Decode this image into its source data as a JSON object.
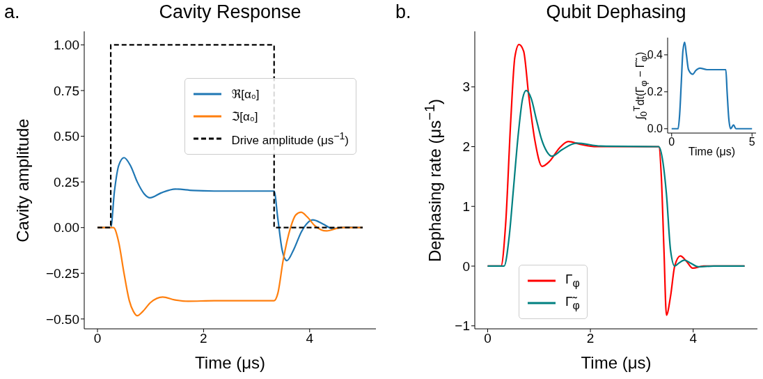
{
  "chart_data": [
    {
      "type": "line",
      "title": "Cavity Response",
      "xlabel": "Time (μs)",
      "ylabel": "Cavity amplitude",
      "annotations": [
        "a."
      ],
      "xlim": [
        -0.25,
        5.25
      ],
      "ylim": [
        -0.554,
        1.074
      ],
      "xticks": [
        0,
        2,
        4
      ],
      "yticks": [
        {
          "value": -0.5,
          "label": "−0.50"
        },
        {
          "value": -0.25,
          "label": "−0.25"
        },
        {
          "value": 0,
          "label": "0.00"
        },
        {
          "value": 0.25,
          "label": "0.25"
        },
        {
          "value": 0.5,
          "label": "0.50"
        },
        {
          "value": 0.75,
          "label": "0.75"
        },
        {
          "value": 1,
          "label": "1.00"
        }
      ],
      "legend": "top right",
      "series": [
        {
          "name": "ℜ[α₀]",
          "color": "#1f77b4",
          "x": [
            0,
            0.25,
            0.32,
            0.4,
            0.5,
            0.62,
            0.75,
            0.88,
            0.99,
            1.2,
            1.47,
            1.8,
            2.2,
            3.33,
            3.4,
            3.48,
            3.57,
            3.7,
            3.85,
            4.06,
            4.25,
            4.43,
            4.7,
            5
          ],
          "values": [
            0,
            0,
            0.2,
            0.34,
            0.383,
            0.34,
            0.25,
            0.185,
            0.163,
            0.19,
            0.211,
            0.203,
            0.2,
            0.2,
            0.05,
            -0.12,
            -0.181,
            -0.12,
            -0.02,
            0.042,
            0.02,
            -0.005,
            0.002,
            0
          ]
        },
        {
          "name": "ℑ[α₀]",
          "color": "#ff7f0e",
          "x": [
            0,
            0.3,
            0.4,
            0.5,
            0.6,
            0.68,
            0.75,
            0.85,
            1.0,
            1.23,
            1.45,
            1.71,
            2.2,
            3.33,
            3.4,
            3.5,
            3.64,
            3.74,
            3.84,
            3.95,
            4.1,
            4.32,
            4.6,
            5
          ],
          "values": [
            0,
            0,
            -0.08,
            -0.25,
            -0.4,
            -0.46,
            -0.482,
            -0.46,
            -0.41,
            -0.38,
            -0.395,
            -0.403,
            -0.4,
            -0.4,
            -0.36,
            -0.18,
            0,
            0.07,
            0.084,
            0.06,
            0.01,
            -0.018,
            0,
            0
          ]
        },
        {
          "name": "Drive amplitude (μs$^{−1}$)",
          "color": "#000000",
          "type": "step",
          "line_style": "dashed",
          "x": [
            0,
            0.25,
            3.33,
            5
          ],
          "values": [
            0,
            1,
            0,
            0
          ]
        }
      ]
    },
    {
      "type": "line",
      "title": "Qubit Dephasing",
      "xlabel": "Time (μs)",
      "ylabel": "Dephasing rate (μs$^{−1}$)",
      "annotations": [
        "b."
      ],
      "xlim": [
        -0.25,
        5.25
      ],
      "ylim": [
        -1.05,
        3.93
      ],
      "xticks": [
        0,
        2,
        4
      ],
      "yticks": [
        {
          "value": -1,
          "label": "−1"
        },
        0,
        1,
        2,
        3
      ],
      "legend": "bottom left",
      "series": [
        {
          "name": "Γ$_{φ}$",
          "color": "#ff0000",
          "x": [
            0,
            0.26,
            0.35,
            0.45,
            0.53,
            0.61,
            0.7,
            0.8,
            0.92,
            1.06,
            1.2,
            1.4,
            1.57,
            1.8,
            2.12,
            2.5,
            3.33,
            3.38,
            3.43,
            3.48,
            3.56,
            3.64,
            3.75,
            3.87,
            3.99,
            4.2,
            5
          ],
          "values": [
            0,
            0,
            0.7,
            2.44,
            3.5,
            3.71,
            3.6,
            2.85,
            2.1,
            1.67,
            1.75,
            1.98,
            2.085,
            2.04,
            2.0,
            2.0,
            2.0,
            1.5,
            0.3,
            -0.82,
            -0.5,
            0,
            0.17,
            0.08,
            -0.035,
            0,
            0
          ]
        },
        {
          "name": "Γ̃$_{φ}$",
          "color": "#008080",
          "x": [
            0,
            0.32,
            0.42,
            0.5,
            0.6,
            0.68,
            0.75,
            0.85,
            0.95,
            1.05,
            1.15,
            1.25,
            1.45,
            1.73,
            2.2,
            3.33,
            3.4,
            3.48,
            3.56,
            3.64,
            3.72,
            3.83,
            3.95,
            4.1,
            4.4,
            5
          ],
          "values": [
            0,
            0,
            0.5,
            1.27,
            2.24,
            2.8,
            2.94,
            2.8,
            2.45,
            2.12,
            1.92,
            1.84,
            1.95,
            2.06,
            2.01,
            2.0,
            1.8,
            1.2,
            0.26,
            0,
            0.05,
            0.1,
            0.05,
            -0.01,
            0,
            0
          ]
        }
      ]
    },
    {
      "type": "line",
      "xlabel": "Time (μs)",
      "ylabel": "∫$_{0}$$^{T}$dt(Γ$_{φ}$ − Γ̃$_{φ}$)",
      "xlim": [
        -0.25,
        5.25
      ],
      "ylim": [
        -0.0235,
        0.4935
      ],
      "xticks": [
        0,
        5
      ],
      "yticks": [
        {
          "value": 0,
          "label": "0.0"
        },
        {
          "value": 0.2,
          "label": "0.2"
        },
        {
          "value": 0.4,
          "label": "0.4"
        }
      ],
      "series": [
        {
          "color": "#1f77b4",
          "x": [
            0,
            0.4,
            0.5,
            0.6,
            0.7,
            0.81,
            0.92,
            1.05,
            1.31,
            1.5,
            1.76,
            2.2,
            3.37,
            3.45,
            3.55,
            3.67,
            3.85,
            4.0,
            5
          ],
          "values": [
            0,
            0,
            0.08,
            0.25,
            0.42,
            0.469,
            0.4,
            0.32,
            0.295,
            0.315,
            0.328,
            0.32,
            0.32,
            0.2,
            0.06,
            0,
            0.02,
            0,
            0
          ]
        }
      ]
    }
  ]
}
